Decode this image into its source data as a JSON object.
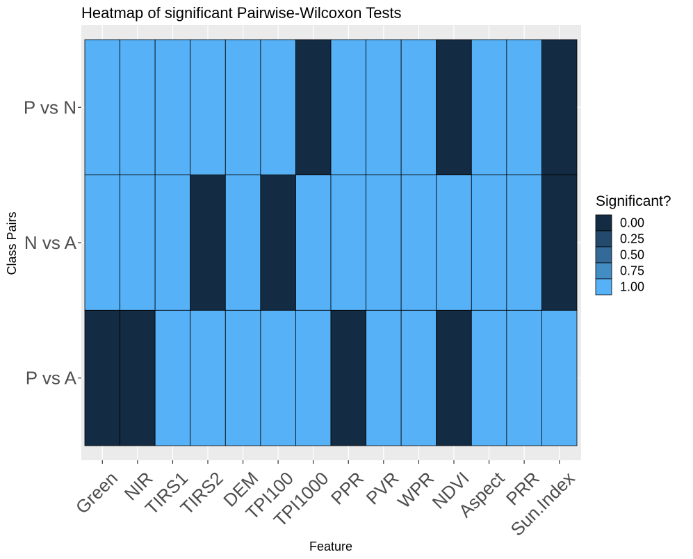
{
  "chart_data": {
    "type": "heatmap",
    "title": "Heatmap of significant Pairwise-Wilcoxon Tests",
    "xlabel": "Feature",
    "ylabel": "Class Pairs",
    "x_categories": [
      "Green",
      "NIR",
      "TIRS1",
      "TIRS2",
      "DEM",
      "TPI100",
      "TPI1000",
      "PPR",
      "PVR",
      "WPR",
      "NDVI",
      "Aspect",
      "PRR",
      "Sun.Index"
    ],
    "y_categories": [
      "P vs N",
      "N vs A",
      "P vs A"
    ],
    "values": [
      [
        1,
        1,
        1,
        1,
        1,
        1,
        0,
        1,
        1,
        1,
        0,
        1,
        1,
        0
      ],
      [
        1,
        1,
        1,
        0,
        1,
        0,
        1,
        1,
        1,
        1,
        1,
        1,
        1,
        0
      ],
      [
        0,
        0,
        1,
        1,
        1,
        1,
        1,
        0,
        1,
        1,
        0,
        1,
        1,
        1
      ]
    ],
    "legend": {
      "title": "Significant?",
      "placement": "right",
      "labels": [
        "0.00",
        "0.25",
        "0.50",
        "0.75",
        "1.00"
      ],
      "colors": [
        "#132B43",
        "#234A6C",
        "#336A98",
        "#438DC5",
        "#56B1F7"
      ]
    },
    "color_scale": {
      "low": "#132B43",
      "high": "#56B1F7",
      "limits": [
        0,
        1
      ]
    },
    "panel_background": "#EBEBEB",
    "grid": true
  }
}
